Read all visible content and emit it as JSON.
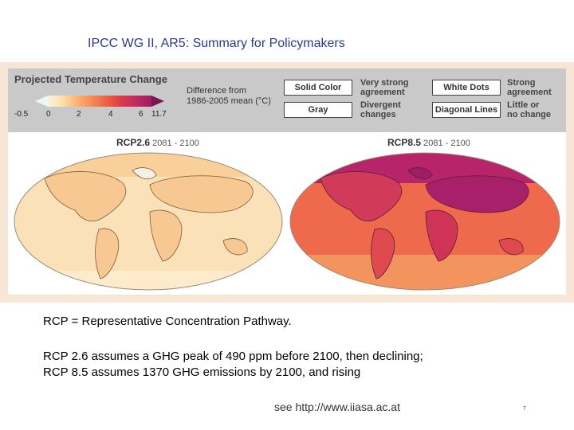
{
  "header": {
    "title": "IPCC WG II, AR5: Summary for Policymakers"
  },
  "figure": {
    "title": "Projected Temperature Change",
    "colorbar": {
      "label_line1": "Difference from",
      "label_line2": "1986-2005 mean (°C)",
      "ticks": [
        "-0.5",
        "0",
        "2",
        "4",
        "6",
        "11.7"
      ]
    },
    "key": {
      "solid_color": "Solid Color",
      "solid_color_desc": [
        "Very strong",
        "agreement"
      ],
      "gray": "Gray",
      "gray_desc": [
        "Divergent",
        "changes"
      ],
      "white_dots": "White Dots",
      "white_dots_desc": [
        "Strong",
        "agreement"
      ],
      "diagonal_lines": "Diagonal Lines",
      "diagonal_lines_desc": [
        "Little or",
        "no change"
      ]
    },
    "maps": [
      {
        "scenario": "RCP2.6",
        "period": "2081 - 2100"
      },
      {
        "scenario": "RCP8.5",
        "period": "2081 - 2100"
      }
    ]
  },
  "captions": {
    "line1": "RCP = Representative Concentration Pathway.",
    "line2": "RCP 2.6 assumes a GHG peak of 490 ppm before 2100, then declining;",
    "line3": "RCP 8.5 assumes 1370 GHG emissions by 2100, and rising"
  },
  "footer": {
    "link": "see http://www.iiasa.ac.at",
    "page_number": "7"
  }
}
